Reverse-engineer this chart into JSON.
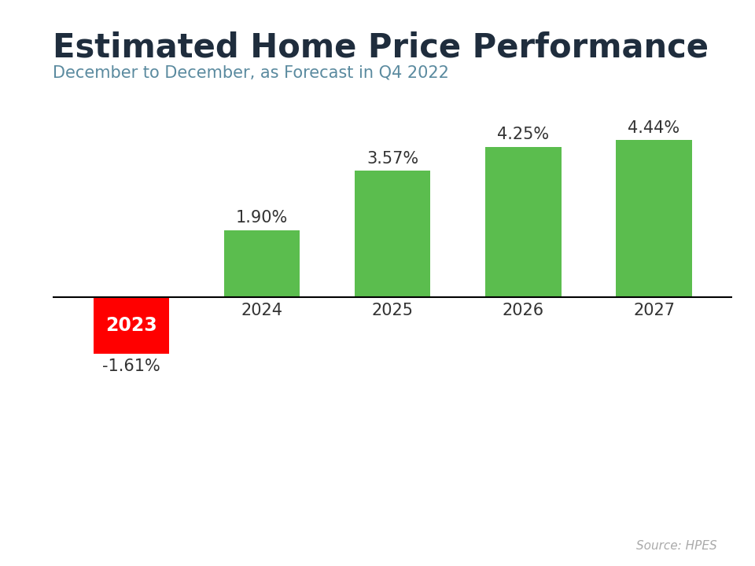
{
  "title": "Estimated Home Price Performance",
  "subtitle": "December to December, as Forecast in Q4 2022",
  "source": "Source: HPES",
  "categories": [
    "2023",
    "2024",
    "2025",
    "2026",
    "2027"
  ],
  "values": [
    -1.61,
    1.9,
    3.57,
    4.25,
    4.44
  ],
  "labels": [
    "-1.61%",
    "1.90%",
    "3.57%",
    "4.25%",
    "4.44%"
  ],
  "bar_colors": [
    "#FF0000",
    "#5BBD4E",
    "#5BBD4E",
    "#5BBD4E",
    "#5BBD4E"
  ],
  "title_color": "#1F2D3D",
  "subtitle_color": "#5A8A9F",
  "tick_color": "#333333",
  "source_color": "#AAAAAA",
  "label_color_positive": "#333333",
  "label_color_negative": "#333333",
  "label_color_on_bar": "#FFFFFF",
  "top_bar_color": "#29B5D8",
  "background_color": "#FFFFFF",
  "title_fontsize": 30,
  "subtitle_fontsize": 15,
  "label_fontsize": 15,
  "tick_fontsize": 15,
  "year_inside_fontsize": 17,
  "source_fontsize": 11,
  "ylim_min": -2.8,
  "ylim_max": 6.0,
  "bar_width": 0.58
}
